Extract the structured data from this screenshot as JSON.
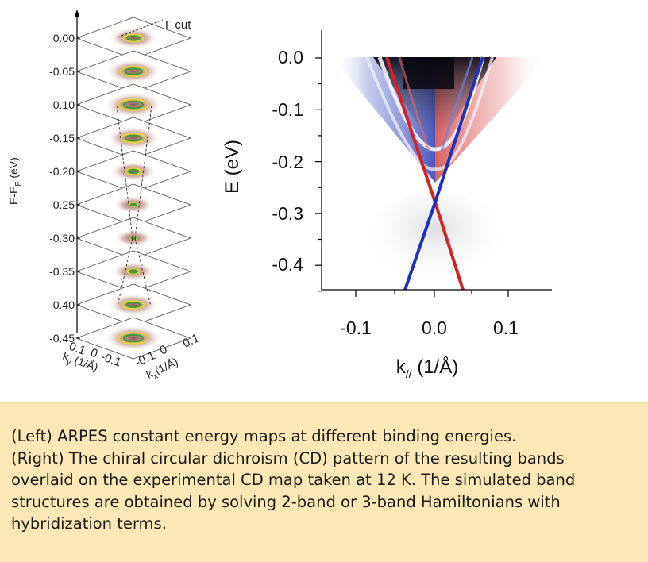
{
  "left_panel": {
    "annotation": "Γ cut",
    "y_axis_label_main": "E-E",
    "y_axis_label_sub": "F",
    "y_axis_label_unit": " (eV)",
    "energy_ticks": [
      "0.00",
      "-0.05",
      "-0.10",
      "-0.15",
      "-0.20",
      "-0.25",
      "-0.30",
      "-0.35",
      "-0.40",
      "-0.45"
    ],
    "ky_ticks": [
      "0.1",
      "0",
      "-0.1"
    ],
    "kx_ticks": [
      "-0.1",
      "0",
      "0.1"
    ],
    "ky_label": "k",
    "ky_label_sub": "y",
    "ky_label_unit": " (1/Å)",
    "kx_label": "k",
    "kx_label_sub": "x",
    "kx_label_unit": "(1/Å)"
  },
  "right_panel": {
    "ylabel": "E (eV)",
    "xlabel_main": "k",
    "xlabel_sub": "//",
    "xlabel_unit": " (1/Å)",
    "y_ticks": [
      "0.0",
      "-0.1",
      "-0.2",
      "-0.3",
      "-0.4"
    ],
    "x_ticks": [
      "-0.1",
      "0.0",
      "0.1"
    ]
  },
  "caption": {
    "lines": [
      "(Left) ARPES constant energy maps at different binding energies.",
      "(Right) The chiral circular dichroism (CD) pattern of the resulting bands",
      "overlaid on the experimental CD map taken at 12 K. The simulated band",
      "structures are obtained by solving 2-band or 3-band Hamiltonians with",
      "hybridization terms."
    ]
  },
  "colors": {
    "caption_background": "#fbe8b6",
    "cd_positive": "#d02020",
    "cd_negative": "#2030b0",
    "contour_core": "#3a9a3a",
    "contour_ring": "#e8d040"
  }
}
